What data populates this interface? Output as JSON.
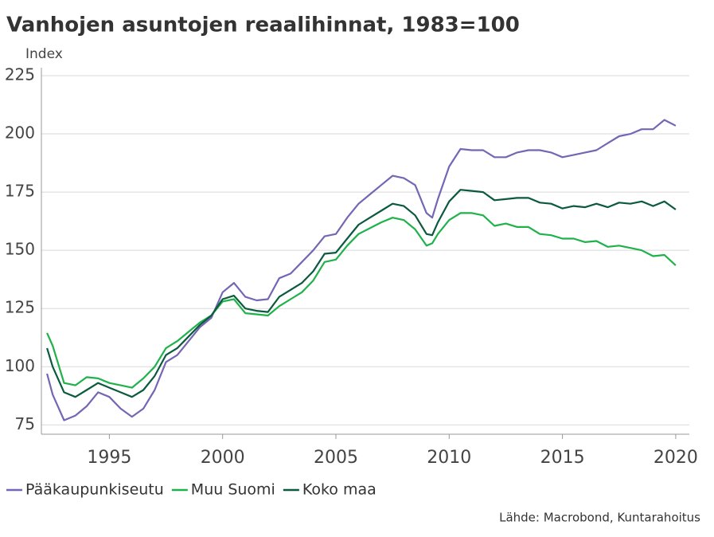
{
  "chart_data": {
    "type": "line",
    "title": "Vanhojen asuntojen reaalihinnat, 1983=100",
    "y_label": "Index",
    "source": "Lähde: Macrobond, Kuntarahoitus",
    "x": [
      1992.25,
      1992.5,
      1993.0,
      1993.5,
      1994.0,
      1994.5,
      1995.0,
      1995.5,
      1996.0,
      1996.5,
      1997.0,
      1997.5,
      1998.0,
      1998.5,
      1999.0,
      1999.5,
      2000.0,
      2000.5,
      2001.0,
      2001.5,
      2002.0,
      2002.5,
      2003.0,
      2003.5,
      2004.0,
      2004.5,
      2005.0,
      2005.5,
      2006.0,
      2006.5,
      2007.0,
      2007.5,
      2008.0,
      2008.5,
      2009.0,
      2009.25,
      2009.5,
      2010.0,
      2010.5,
      2011.0,
      2011.5,
      2012.0,
      2012.5,
      2013.0,
      2013.5,
      2014.0,
      2014.5,
      2015.0,
      2015.5,
      2016.0,
      2016.5,
      2017.0,
      2017.5,
      2018.0,
      2018.5,
      2019.0,
      2019.5,
      2020.0
    ],
    "series": [
      {
        "name": "Pääkaupunkiseutu",
        "color": "#7566b5",
        "values": [
          97,
          88,
          77,
          79,
          83,
          89,
          87,
          82,
          78.5,
          82,
          90,
          102,
          105,
          111,
          117,
          121,
          132,
          136,
          130,
          128.5,
          129,
          138,
          140,
          145,
          150,
          156,
          157,
          164,
          170,
          174,
          178,
          182,
          181,
          178,
          166,
          164,
          172,
          186,
          193.5,
          193,
          193,
          190,
          190,
          192,
          193,
          193,
          192,
          190,
          191,
          192,
          193,
          196,
          199,
          200,
          202,
          202,
          206,
          203.5
        ]
      },
      {
        "name": "Muu Suomi",
        "color": "#1fb24a",
        "values": [
          114.5,
          109,
          93,
          92,
          95.5,
          95,
          93,
          92,
          91,
          95,
          100,
          108,
          111,
          115,
          119,
          122,
          128,
          129,
          123,
          122.5,
          122,
          126,
          129,
          132,
          137,
          145,
          146,
          152,
          157,
          159.5,
          162,
          164,
          163,
          159,
          152,
          153,
          157,
          163,
          166,
          166,
          165,
          160.5,
          161.5,
          160,
          160,
          157,
          156.5,
          155,
          155,
          153.5,
          154,
          151.5,
          152,
          151,
          150,
          147.5,
          148,
          143.5
        ]
      },
      {
        "name": "Koko maa",
        "color": "#0b5a3e",
        "values": [
          108,
          100,
          89,
          87,
          90,
          93,
          91,
          89,
          87,
          90,
          96,
          105,
          108,
          113,
          118,
          122,
          129,
          130.5,
          125,
          124,
          123.5,
          130,
          133,
          136,
          141,
          148.5,
          149,
          155,
          161,
          164,
          167,
          170,
          169,
          165,
          157,
          156.5,
          162,
          171,
          176,
          175.5,
          175,
          171.5,
          172,
          172.5,
          172.5,
          170.5,
          170,
          168,
          169,
          168.5,
          170,
          168.5,
          170.5,
          170,
          171,
          169,
          171,
          167.5
        ]
      }
    ],
    "xlim": [
      1992,
      2020.6
    ],
    "xticks": [
      1995,
      2000,
      2005,
      2010,
      2015,
      2020
    ],
    "ylim": [
      71,
      225
    ],
    "yticks": [
      75,
      100,
      125,
      150,
      175,
      200,
      225
    ],
    "grid": true
  }
}
